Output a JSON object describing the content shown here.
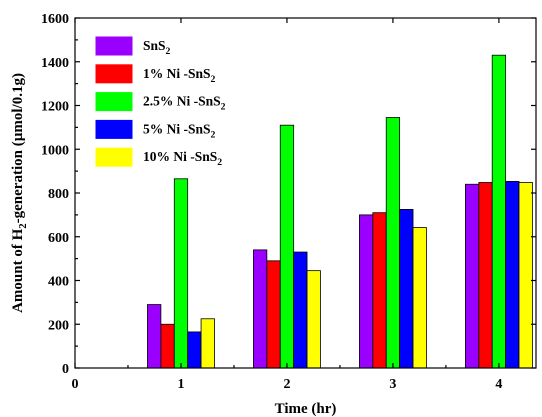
{
  "chart_data": {
    "type": "bar",
    "xlabel": "Time (hr)",
    "ylabel": "Amount of H2-generation (µmol/0.1g)",
    "ylabel_parts": [
      "Amount of H",
      "2",
      "-generation (µmol/0.1g)"
    ],
    "categories": [
      1,
      2,
      3,
      4
    ],
    "xlim": [
      0,
      4.35
    ],
    "ylim": [
      0,
      1600
    ],
    "x_ticks": [
      0,
      1,
      2,
      3,
      4
    ],
    "y_ticks": [
      0,
      200,
      400,
      600,
      800,
      1000,
      1200,
      1400,
      1600
    ],
    "grid": false,
    "legend_position": "top-left",
    "series": [
      {
        "name": "SnS2",
        "label_parts": [
          "SnS",
          "2",
          ""
        ],
        "color": "#9900FF",
        "values": [
          290,
          540,
          700,
          840
        ]
      },
      {
        "name": "1% Ni -SnS2",
        "label_parts": [
          "1% Ni -SnS",
          "2",
          ""
        ],
        "color": "#FF0000",
        "values": [
          200,
          490,
          710,
          848
        ]
      },
      {
        "name": "2.5% Ni -SnS2",
        "label_parts": [
          "2.5% Ni -SnS",
          "2",
          ""
        ],
        "color": "#00FF00",
        "values": [
          865,
          1110,
          1145,
          1430
        ]
      },
      {
        "name": "5% Ni -SnS2",
        "label_parts": [
          "5% Ni -SnS",
          "2",
          ""
        ],
        "color": "#0000FF",
        "values": [
          165,
          530,
          725,
          853
        ]
      },
      {
        "name": "10% Ni -SnS2",
        "label_parts": [
          "10% Ni -SnS",
          "2",
          ""
        ],
        "color": "#FFFF00",
        "values": [
          225,
          445,
          642,
          848
        ]
      }
    ]
  }
}
